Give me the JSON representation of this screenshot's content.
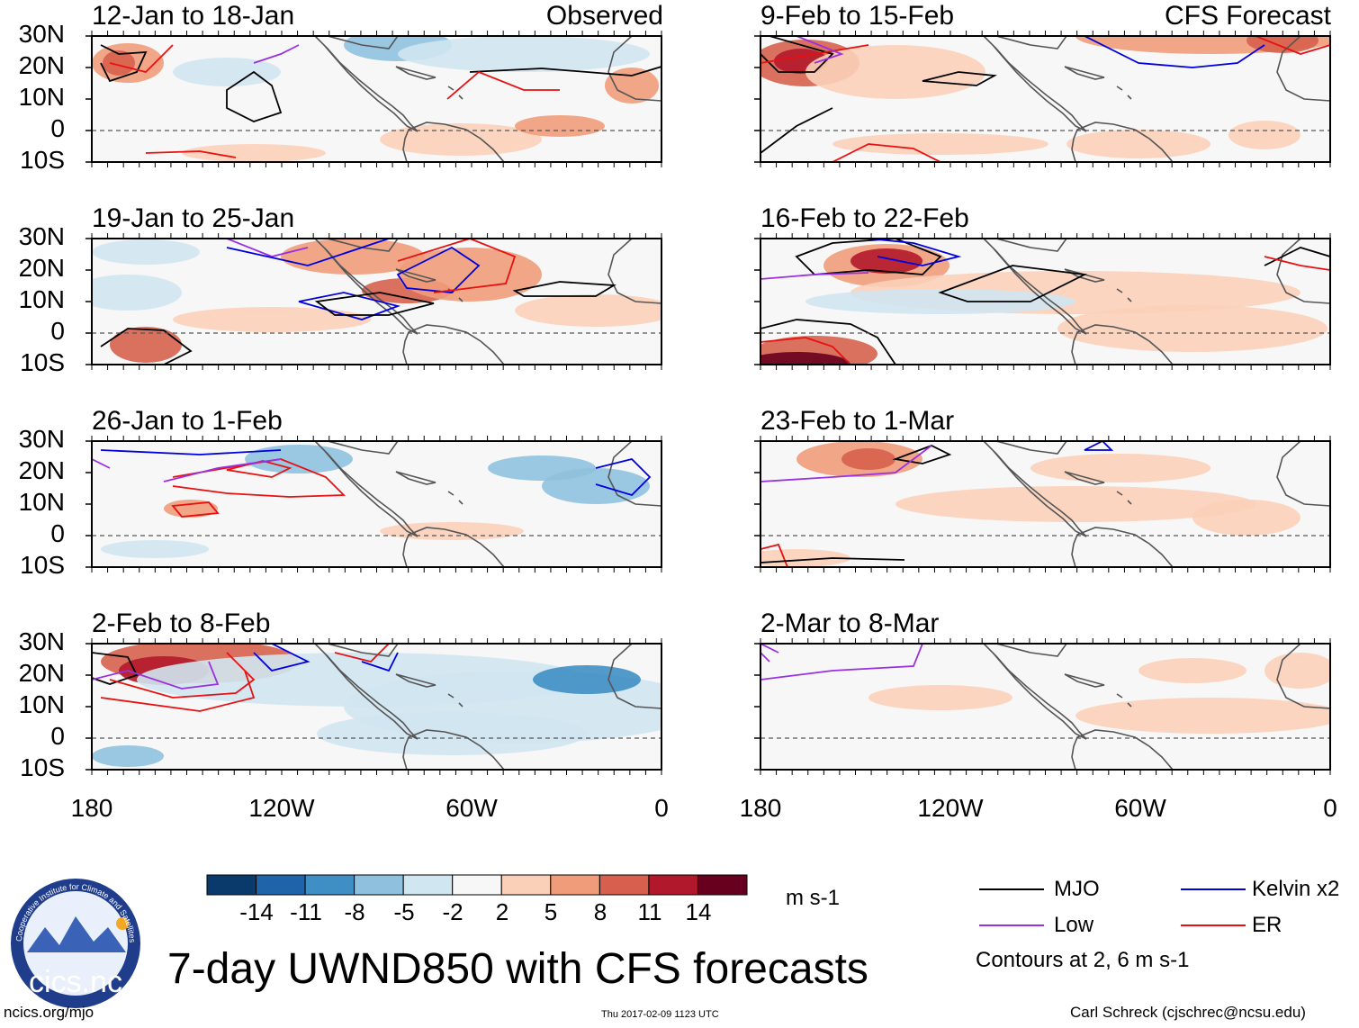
{
  "figure": {
    "title": "7-day UWND850 with CFS forecasts",
    "observed_tag": "Observed",
    "forecast_tag": "CFS Forecast",
    "units": "m s-1",
    "contour_note": "Contours at 2, 6 m s-1",
    "url": "ncics.org/mjo",
    "timestamp": "Thu 2017-02-09 1123 UTC",
    "author": "Carl Schreck (cjschrec@ncsu.edu)",
    "logo_text": "cics.nc",
    "logo_ring_text": "Cooperative Institute for Climate and Satellites"
  },
  "panels": {
    "observed": [
      {
        "period": "12-Jan to 18-Jan"
      },
      {
        "period": "19-Jan to 25-Jan"
      },
      {
        "period": "26-Jan to 1-Feb"
      },
      {
        "period": "2-Feb to 8-Feb"
      }
    ],
    "forecast": [
      {
        "period": "9-Feb to 15-Feb"
      },
      {
        "period": "16-Feb to 22-Feb"
      },
      {
        "period": "23-Feb to 1-Mar"
      },
      {
        "period": "2-Mar to 8-Mar"
      }
    ]
  },
  "axes": {
    "lat_labels": [
      "30N",
      "20N",
      "10N",
      "0",
      "10S"
    ],
    "lon_labels": [
      "180",
      "120W",
      "60W",
      "0"
    ]
  },
  "colorbar": {
    "labels": [
      "-14",
      "-11",
      "-8",
      "-5",
      "-2",
      "2",
      "5",
      "8",
      "11",
      "14"
    ],
    "colors": [
      "#0a3a6b",
      "#1f63a8",
      "#3f8fc4",
      "#8fc1de",
      "#d0e6f1",
      "#f7f7f7",
      "#fbd0b9",
      "#f09c7a",
      "#d6604d",
      "#b2182b",
      "#67001f"
    ]
  },
  "legend": {
    "items": [
      {
        "label": "MJO",
        "color": "#000000"
      },
      {
        "label": "Kelvin x2",
        "color": "#0000dd"
      },
      {
        "label": "Low",
        "color": "#9b30e0"
      },
      {
        "label": "ER",
        "color": "#e81010"
      }
    ]
  }
}
